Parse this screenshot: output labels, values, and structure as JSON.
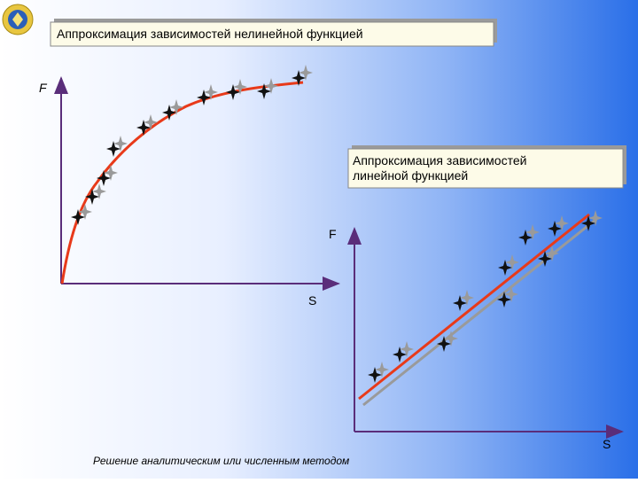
{
  "left_panel": {
    "title": "Аппроксимация зависимостей  нелинейной функцией",
    "y_label": "F",
    "x_label": "S"
  },
  "right_panel": {
    "title_lines": [
      "Аппроксимация зависимостей",
      "линейной функцией"
    ],
    "y_label": "F",
    "x_label": "S"
  },
  "footer": "Решение аналитическим или численным методом"
}
